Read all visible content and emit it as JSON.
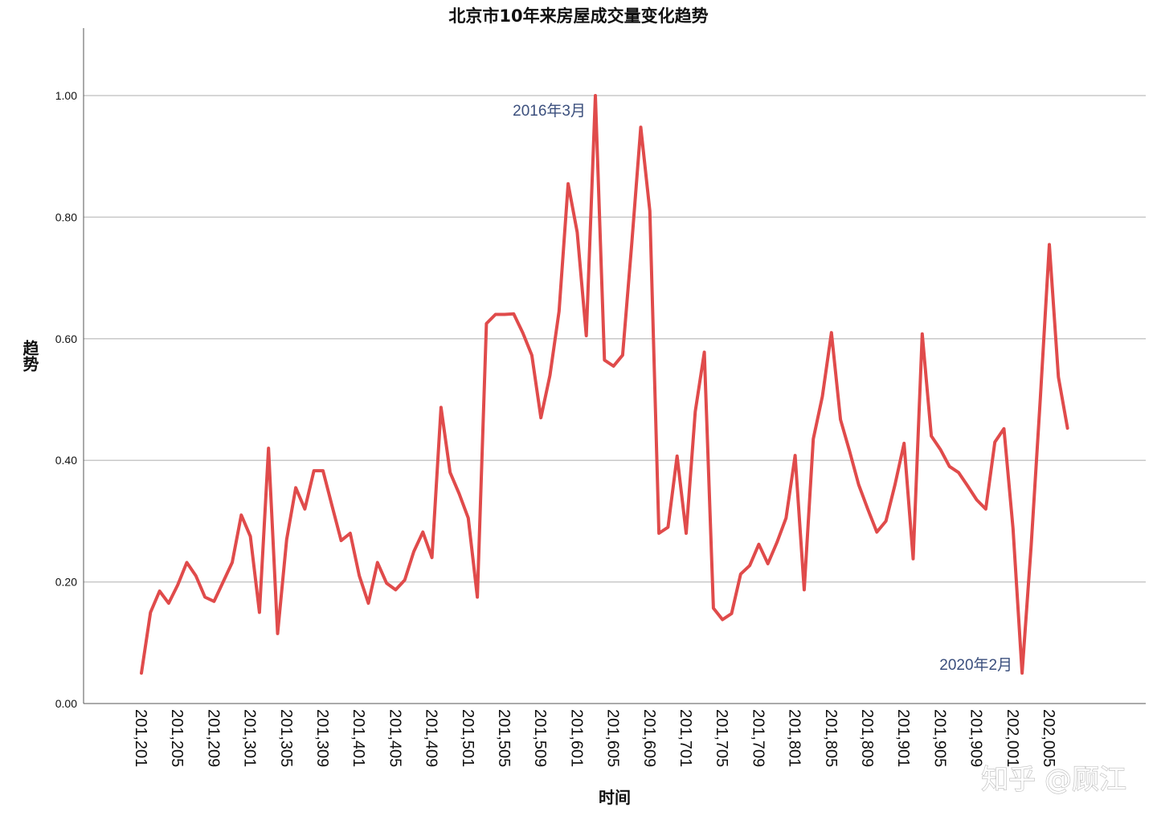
{
  "chart_data": {
    "type": "line",
    "title": "北京市10年来房屋成交量变化趋势",
    "xlabel": "时间",
    "ylabel": "趋势",
    "ylim": [
      0,
      1.1
    ],
    "yticks": [
      "0.00",
      "0.20",
      "0.40",
      "0.60",
      "0.80",
      "1.00"
    ],
    "grid": "horizontal",
    "line_color": "#e04b4b",
    "x_tick_labels": [
      "201,201",
      "201,205",
      "201,209",
      "201,301",
      "201,305",
      "201,309",
      "201,401",
      "201,405",
      "201,409",
      "201,501",
      "201,505",
      "201,509",
      "201,601",
      "201,605",
      "201,609",
      "201,701",
      "201,705",
      "201,709",
      "201,801",
      "201,805",
      "201,809",
      "201,901",
      "201,905",
      "201,909",
      "202,001",
      "202,005"
    ],
    "x": [
      "2012-01",
      "2012-02",
      "2012-03",
      "2012-04",
      "2012-05",
      "2012-06",
      "2012-07",
      "2012-08",
      "2012-09",
      "2012-10",
      "2012-11",
      "2012-12",
      "2013-01",
      "2013-02",
      "2013-03",
      "2013-04",
      "2013-05",
      "2013-06",
      "2013-07",
      "2013-08",
      "2013-09",
      "2013-10",
      "2013-11",
      "2013-12",
      "2014-01",
      "2014-02",
      "2014-03",
      "2014-04",
      "2014-05",
      "2014-06",
      "2014-07",
      "2014-08",
      "2014-09",
      "2014-10",
      "2014-11",
      "2014-12",
      "2015-01",
      "2015-02",
      "2015-03",
      "2015-04",
      "2015-05",
      "2015-06",
      "2015-07",
      "2015-08",
      "2015-09",
      "2015-10",
      "2015-11",
      "2015-12",
      "2016-01",
      "2016-02",
      "2016-03",
      "2016-04",
      "2016-05",
      "2016-06",
      "2016-07",
      "2016-08",
      "2016-09",
      "2016-10",
      "2016-11",
      "2016-12",
      "2017-01",
      "2017-02",
      "2017-03",
      "2017-04",
      "2017-05",
      "2017-06",
      "2017-07",
      "2017-08",
      "2017-09",
      "2017-10",
      "2017-11",
      "2017-12",
      "2018-01",
      "2018-02",
      "2018-03",
      "2018-04",
      "2018-05",
      "2018-06",
      "2018-07",
      "2018-08",
      "2018-09",
      "2018-10",
      "2018-11",
      "2018-12",
      "2019-01",
      "2019-02",
      "2019-03",
      "2019-04",
      "2019-05",
      "2019-06",
      "2019-07",
      "2019-08",
      "2019-09",
      "2019-10",
      "2019-11",
      "2019-12",
      "2020-01",
      "2020-02",
      "2020-03",
      "2020-04",
      "2020-05",
      "2020-06",
      "2020-07"
    ],
    "values": [
      0.05,
      0.15,
      0.185,
      0.165,
      0.195,
      0.232,
      0.21,
      0.175,
      0.168,
      0.2,
      0.232,
      0.31,
      0.275,
      0.15,
      0.42,
      0.115,
      0.27,
      0.355,
      0.32,
      0.383,
      0.383,
      0.325,
      0.268,
      0.28,
      0.21,
      0.165,
      0.232,
      0.198,
      0.187,
      0.203,
      0.25,
      0.282,
      0.24,
      0.487,
      0.38,
      0.345,
      0.305,
      0.175,
      0.625,
      0.64,
      0.64,
      0.641,
      0.61,
      0.573,
      0.47,
      0.54,
      0.645,
      0.855,
      0.775,
      0.605,
      1.0,
      0.565,
      0.555,
      0.573,
      0.755,
      0.948,
      0.81,
      0.28,
      0.29,
      0.407,
      0.28,
      0.48,
      0.578,
      0.157,
      0.138,
      0.148,
      0.213,
      0.227,
      0.262,
      0.23,
      0.265,
      0.305,
      0.408,
      0.187,
      0.435,
      0.505,
      0.61,
      0.467,
      0.415,
      0.36,
      0.32,
      0.282,
      0.3,
      0.36,
      0.428,
      0.238,
      0.608,
      0.44,
      0.418,
      0.39,
      0.38,
      0.358,
      0.335,
      0.32,
      0.43,
      0.452,
      0.288,
      0.05,
      0.26,
      0.5,
      0.755,
      0.537,
      0.453
    ],
    "annotations": [
      {
        "text": "2016年3月",
        "x": "2016-03",
        "y": 1.0
      },
      {
        "text": "2020年2月",
        "x": "2020-02",
        "y": 0.05
      }
    ]
  },
  "watermark": "知乎 @顾江"
}
